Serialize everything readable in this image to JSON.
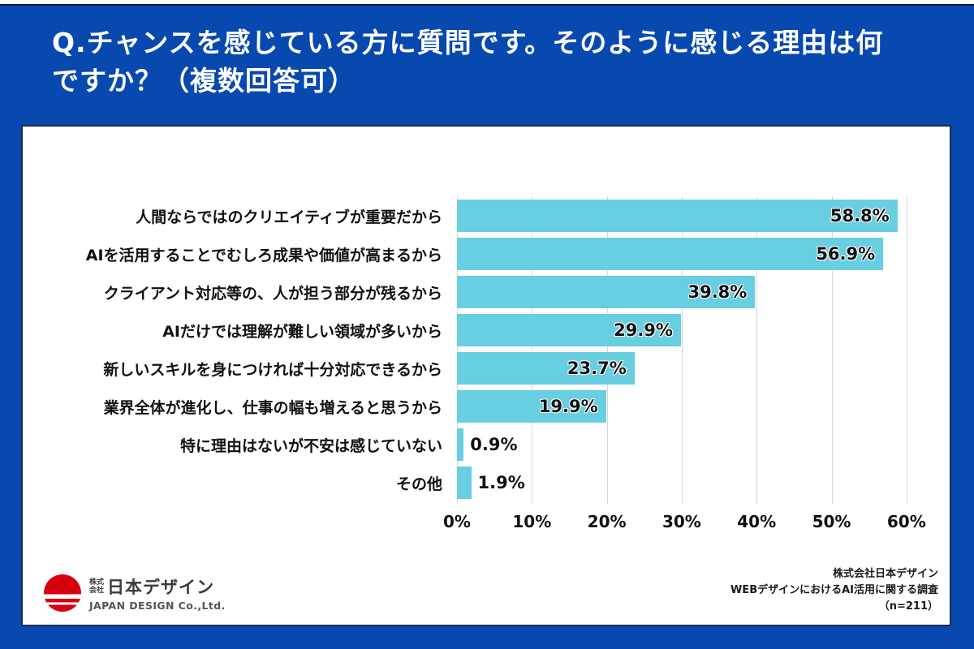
{
  "title": {
    "full": "Q.チャンスを感じている方に質問です。そのように感じる理由は何ですか？（複数回答可）",
    "line1": "Q.チャンスを感じている方に質問です。そのように感じる理由は何",
    "line2": "ですか？（複数回答可）"
  },
  "chart_data": {
    "type": "bar",
    "orientation": "horizontal",
    "title": "Q.チャンスを感じている方に質問です。そのように感じる理由は何ですか？（複数回答可）",
    "categories": [
      "人間ならではのクリエイティブが重要だから",
      "AIを活用することでむしろ成果や価値が高まるから",
      "クライアント対応等の、人が担う部分が残るから",
      "AIだけでは理解が難しい領域が多いから",
      "新しいスキルを身につければ十分対応できるから",
      "業界全体が進化し、仕事の幅も増えると思うから",
      "特に理由はないが不安は感じていない",
      "その他"
    ],
    "values": [
      58.8,
      56.9,
      39.8,
      29.9,
      23.7,
      19.9,
      0.9,
      1.9
    ],
    "value_labels": [
      "58.8%",
      "56.9%",
      "39.8%",
      "29.9%",
      "23.7%",
      "19.9%",
      "0.9%",
      "1.9%"
    ],
    "xlabel": "",
    "ylabel": "",
    "xlim": [
      0,
      65
    ],
    "tick_values": [
      0,
      10,
      20,
      30,
      40,
      50,
      60
    ],
    "tick_labels": [
      "0%",
      "10%",
      "20%",
      "30%",
      "40%",
      "50%",
      "60%"
    ],
    "grid": true,
    "bar_color": "#68cee1",
    "gridline_color": "#d8d8d8"
  },
  "footer": {
    "logo": {
      "mark": "japan-design-red-circle-logo",
      "prefix_line1": "株式",
      "prefix_line2": "会社",
      "company_name": "日本デザイン",
      "company_name_en": "JAPAN DESIGN Co.,Ltd."
    },
    "source": {
      "line1": "株式会社日本デザイン",
      "line2": "WEBデザインにおけるAI活用に関する調査",
      "line3": "（n=211）"
    }
  },
  "colors": {
    "background": "#0849b0",
    "card": "#ffffff",
    "bar": "#68cee1",
    "title_text": "#ffffff",
    "label_text": "#111111",
    "logo_red": "#d7000f"
  }
}
